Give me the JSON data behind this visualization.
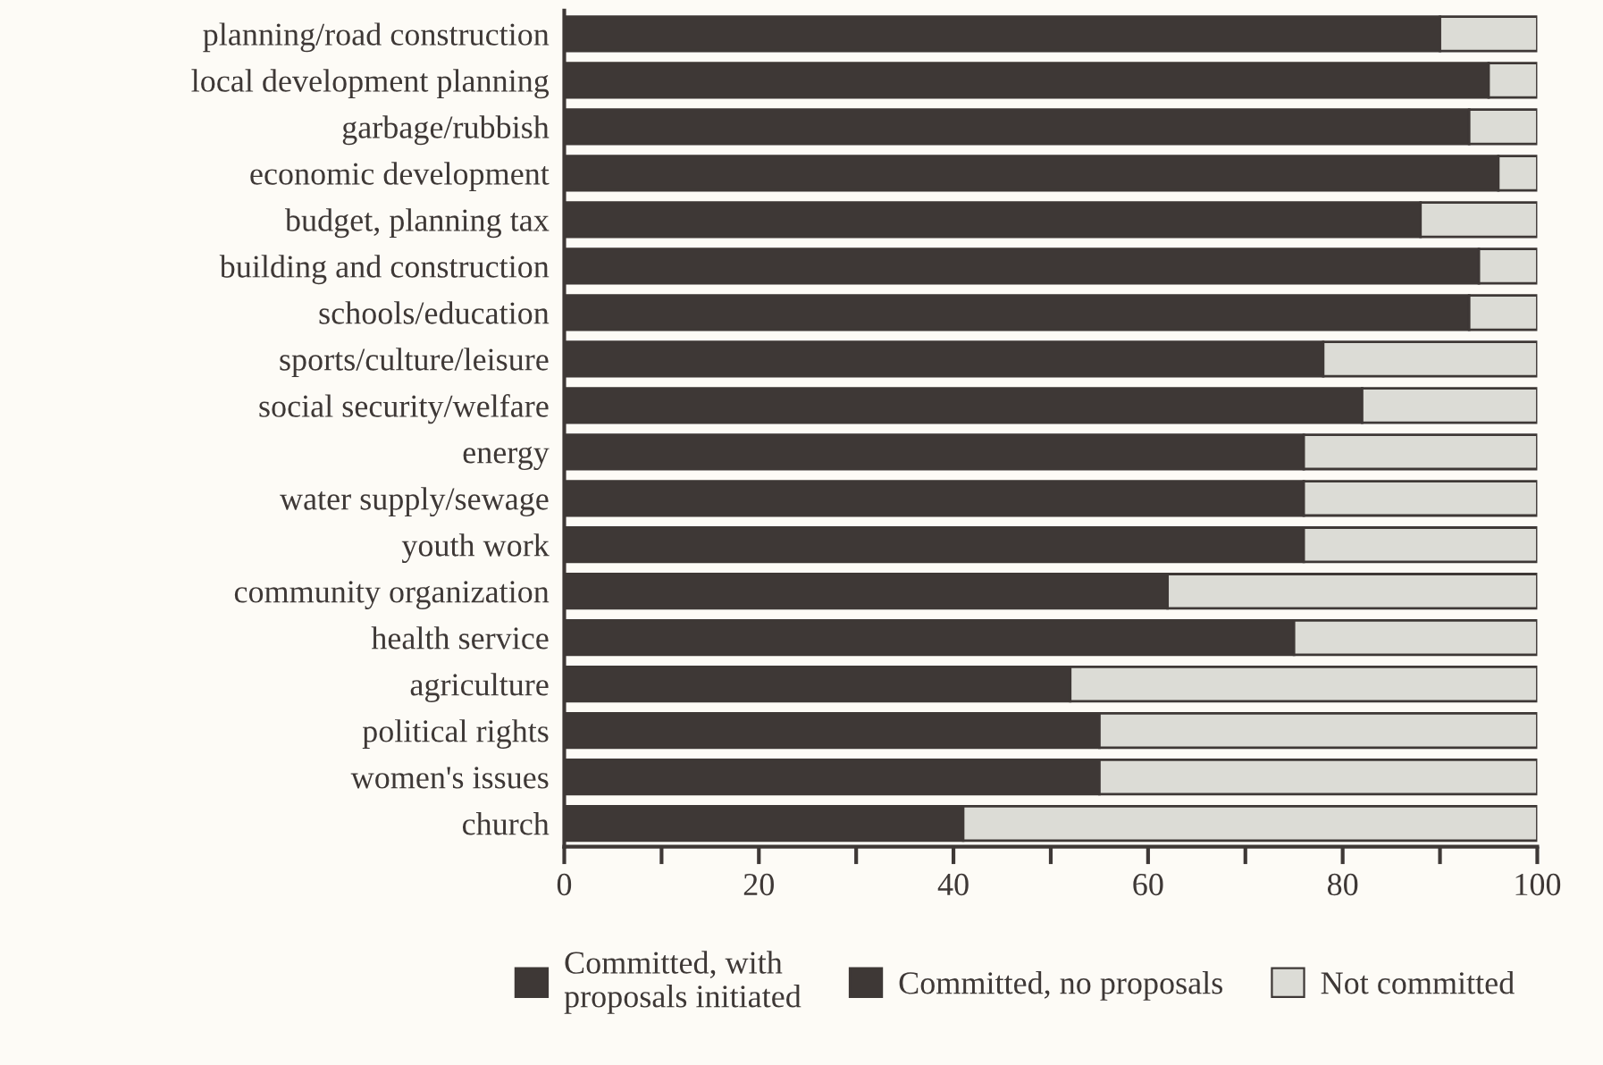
{
  "chart_data": {
    "type": "bar",
    "orientation": "horizontal",
    "stacked": true,
    "categories": [
      "planning/road construction",
      "local development planning",
      "garbage/rubbish",
      "economic development",
      "budget, planning tax",
      "building and construction",
      "schools/education",
      "sports/culture/leisure",
      "social security/welfare",
      "energy",
      "water supply/sewage",
      "youth work",
      "community organization",
      "health service",
      "agriculture",
      "political rights",
      "women's issues",
      "church"
    ],
    "series": [
      {
        "name": "Committed, with\nproposals initiated",
        "color": "#3e3836",
        "values": [
          90,
          95,
          93,
          96,
          88,
          94,
          93,
          78,
          82,
          76,
          76,
          76,
          62,
          75,
          52,
          55,
          55,
          41
        ]
      },
      {
        "name": "Committed, no proposals",
        "color": "#3e3836",
        "values": [
          null,
          null,
          null,
          null,
          null,
          null,
          null,
          null,
          null,
          null,
          null,
          null,
          null,
          null,
          null,
          null,
          null,
          null
        ]
      },
      {
        "name": "Not committed",
        "color": "#dcdcd6",
        "values": [
          10,
          5,
          7,
          4,
          12,
          6,
          7,
          22,
          18,
          24,
          24,
          24,
          38,
          25,
          48,
          45,
          45,
          59
        ]
      }
    ],
    "xlim": [
      0,
      100
    ],
    "xticks": [
      0,
      {
        "value": 10,
        "label": null
      },
      20,
      {
        "value": 30,
        "label": null
      },
      40,
      {
        "value": 50,
        "label": null
      },
      60,
      {
        "value": 70,
        "label": null
      },
      80,
      {
        "value": 90,
        "label": null
      },
      100
    ],
    "grid": false,
    "legend": "bottom"
  }
}
